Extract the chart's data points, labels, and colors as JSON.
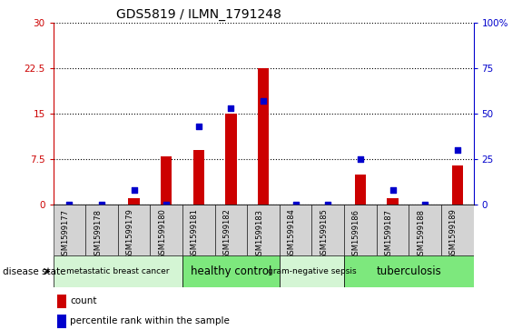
{
  "title": "GDS5819 / ILMN_1791248",
  "samples": [
    "GSM1599177",
    "GSM1599178",
    "GSM1599179",
    "GSM1599180",
    "GSM1599181",
    "GSM1599182",
    "GSM1599183",
    "GSM1599184",
    "GSM1599185",
    "GSM1599186",
    "GSM1599187",
    "GSM1599188",
    "GSM1599189"
  ],
  "counts": [
    0,
    0,
    1,
    8,
    9,
    15,
    22.5,
    0,
    0,
    5,
    1,
    0,
    6.5
  ],
  "percentile": [
    0,
    0,
    8,
    0,
    43,
    53,
    57,
    0,
    0,
    25,
    8,
    0,
    30
  ],
  "ylim_left": [
    0,
    30
  ],
  "ylim_right": [
    0,
    100
  ],
  "yticks_left": [
    0,
    7.5,
    15,
    22.5,
    30
  ],
  "yticks_left_labels": [
    "0",
    "7.5",
    "15",
    "22.5",
    "30"
  ],
  "yticks_right": [
    0,
    25,
    50,
    75,
    100
  ],
  "yticks_right_labels": [
    "0",
    "25",
    "50",
    "75",
    "100%"
  ],
  "disease_groups": [
    {
      "label": "metastatic breast cancer",
      "start": 0,
      "end": 4,
      "color": "#d4f5d4"
    },
    {
      "label": "healthy control",
      "start": 4,
      "end": 7,
      "color": "#7de87d"
    },
    {
      "label": "gram-negative sepsis",
      "start": 7,
      "end": 9,
      "color": "#d4f5d4"
    },
    {
      "label": "tuberculosis",
      "start": 9,
      "end": 13,
      "color": "#7de87d"
    }
  ],
  "bar_color": "#cc0000",
  "dot_color": "#0000cc",
  "bar_width": 0.35,
  "dot_size": 25,
  "legend_items": [
    "count",
    "percentile rank within the sample"
  ],
  "bg_color": "#ffffff",
  "plot_bg": "#ffffff",
  "left_axis_color": "#cc0000",
  "right_axis_color": "#0000cc",
  "sample_box_color": "#d3d3d3",
  "title_fontsize": 10,
  "tick_fontsize": 7.5,
  "sample_fontsize": 6,
  "group_fontsize_large": 8.5,
  "group_fontsize_small": 6.5,
  "legend_fontsize": 7.5,
  "disease_label": "disease state"
}
